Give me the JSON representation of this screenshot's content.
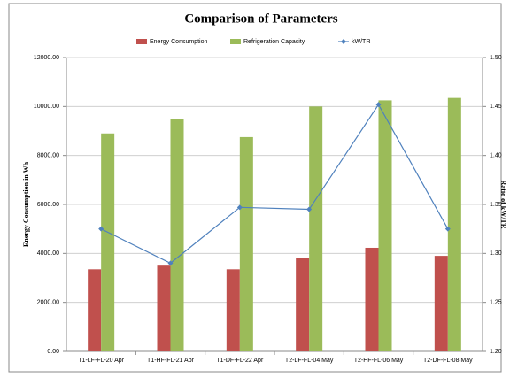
{
  "chart_data": {
    "type": "bar",
    "title": "Comparison of Parameters",
    "y_label": "Energy Consumption in Wh",
    "y2_label": "Ratio of kW/TR",
    "categories": [
      "T1-LF-FL-20 Apr",
      "T1-HF-FL-21 Apr",
      "T1-DF-FL-22 Apr",
      "T2-LF-FL-04 May",
      "T2-HF-FL-06 May",
      "T2-DF-FL-08 May"
    ],
    "series": [
      {
        "name": "Energy Consumption",
        "type": "bar",
        "color": "#c0504d",
        "values": [
          3350,
          3500,
          3350,
          3800,
          4230,
          3900
        ]
      },
      {
        "name": "Refrigeration Capacity",
        "type": "bar",
        "color": "#9bbb59",
        "values": [
          8900,
          9500,
          8750,
          10000,
          10250,
          10350
        ]
      },
      {
        "name": "kW/TR",
        "type": "line",
        "axis": "y2",
        "color": "#4f81bd",
        "values": [
          1.325,
          1.29,
          1.347,
          1.345,
          1.452,
          1.325
        ]
      }
    ],
    "ylim": [
      0,
      12000
    ],
    "yticks": [
      {
        "value": 0,
        "label": "0.00"
      },
      {
        "value": 2000,
        "label": "2000.00"
      },
      {
        "value": 4000,
        "label": "4000.00"
      },
      {
        "value": 6000,
        "label": "6000.00"
      },
      {
        "value": 8000,
        "label": "8000.00"
      },
      {
        "value": 10000,
        "label": "10000.00"
      },
      {
        "value": 12000,
        "label": "12000.00"
      }
    ],
    "y2lim": [
      1.2,
      1.5
    ],
    "y2ticks": [
      {
        "value": 1.2,
        "label": "1.20"
      },
      1.25,
      {
        "value": 1.3,
        "label": "1.30"
      },
      1.35,
      {
        "value": 1.4,
        "label": "1.40"
      },
      1.45,
      {
        "value": 1.5,
        "label": "1.50"
      }
    ],
    "grid": true,
    "legend": "top"
  }
}
